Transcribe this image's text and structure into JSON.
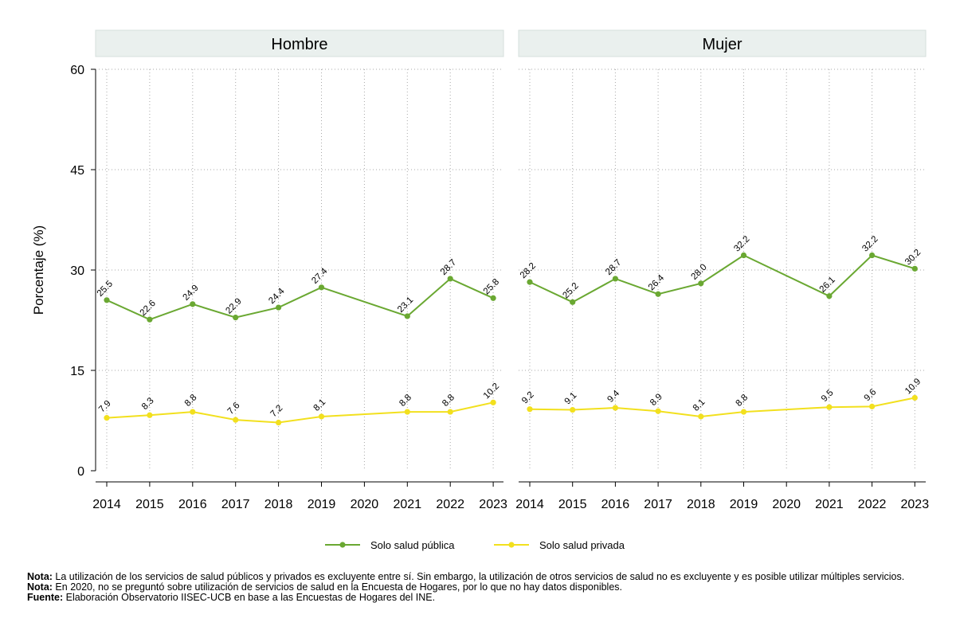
{
  "chart_data": {
    "type": "line",
    "ylabel": "Porcentaje (%)",
    "ylim": [
      0,
      60
    ],
    "yticks": [
      0,
      15,
      30,
      45,
      60
    ],
    "x": [
      "2014",
      "2015",
      "2016",
      "2017",
      "2018",
      "2019",
      "2020",
      "2021",
      "2022",
      "2023"
    ],
    "panels": [
      {
        "title": "Hombre",
        "series": [
          {
            "name": "Solo salud pública",
            "color": "#6aa832",
            "values": [
              25.5,
              22.6,
              24.9,
              22.9,
              24.4,
              27.4,
              null,
              23.1,
              28.7,
              25.8
            ],
            "labels": [
              "25.5",
              "22.6",
              "24.9",
              "22.9",
              "24.4",
              "27.4",
              null,
              "23.1",
              "28.7",
              "25.8"
            ]
          },
          {
            "name": "Solo salud privada",
            "color": "#f2e01e",
            "values": [
              7.9,
              8.3,
              8.8,
              7.6,
              7.2,
              8.1,
              null,
              8.8,
              8.8,
              10.2
            ],
            "labels": [
              "7.9",
              "8.3",
              "8.8",
              "7.6",
              "7.2",
              "8.1",
              null,
              "8.8",
              "8.8",
              "10.2"
            ]
          }
        ]
      },
      {
        "title": "Mujer",
        "series": [
          {
            "name": "Solo salud pública",
            "color": "#6aa832",
            "values": [
              28.2,
              25.2,
              28.7,
              26.4,
              28.0,
              32.2,
              null,
              26.1,
              32.2,
              30.2
            ],
            "labels": [
              "28.2",
              "25.2",
              "28.7",
              "26.4",
              "28.0",
              "32.2",
              null,
              "26.1",
              "32.2",
              "30.2"
            ]
          },
          {
            "name": "Solo salud privada",
            "color": "#f2e01e",
            "values": [
              9.2,
              9.1,
              9.4,
              8.9,
              8.1,
              8.8,
              null,
              9.5,
              9.6,
              10.9
            ],
            "labels": [
              "9.2",
              "9.1",
              "9.4",
              "8.9",
              "8.1",
              "8.8",
              null,
              "9.5",
              "9.6",
              "10.9"
            ]
          }
        ]
      }
    ],
    "legend": [
      {
        "name": "Solo salud pública",
        "color": "#6aa832"
      },
      {
        "name": "Solo salud privada",
        "color": "#f2e01e"
      }
    ],
    "legend_position": "bottom"
  },
  "notes": [
    {
      "label": "Nota:",
      "text": " La utilización de los servicios de salud públicos y privados es excluyente entre sí. Sin embargo, la utilización de otros servicios de salud no es excluyente y es posible utilizar múltiples servicios."
    },
    {
      "label": "Nota:",
      "text": " En 2020, no se preguntó sobre utilización de servicios de salud en la Encuesta de Hogares, por lo que no hay datos disponibles."
    },
    {
      "label": "Fuente:",
      "text": " Elaboración Observatorio IISEC-UCB en base a las Encuestas de Hogares del INE."
    }
  ]
}
